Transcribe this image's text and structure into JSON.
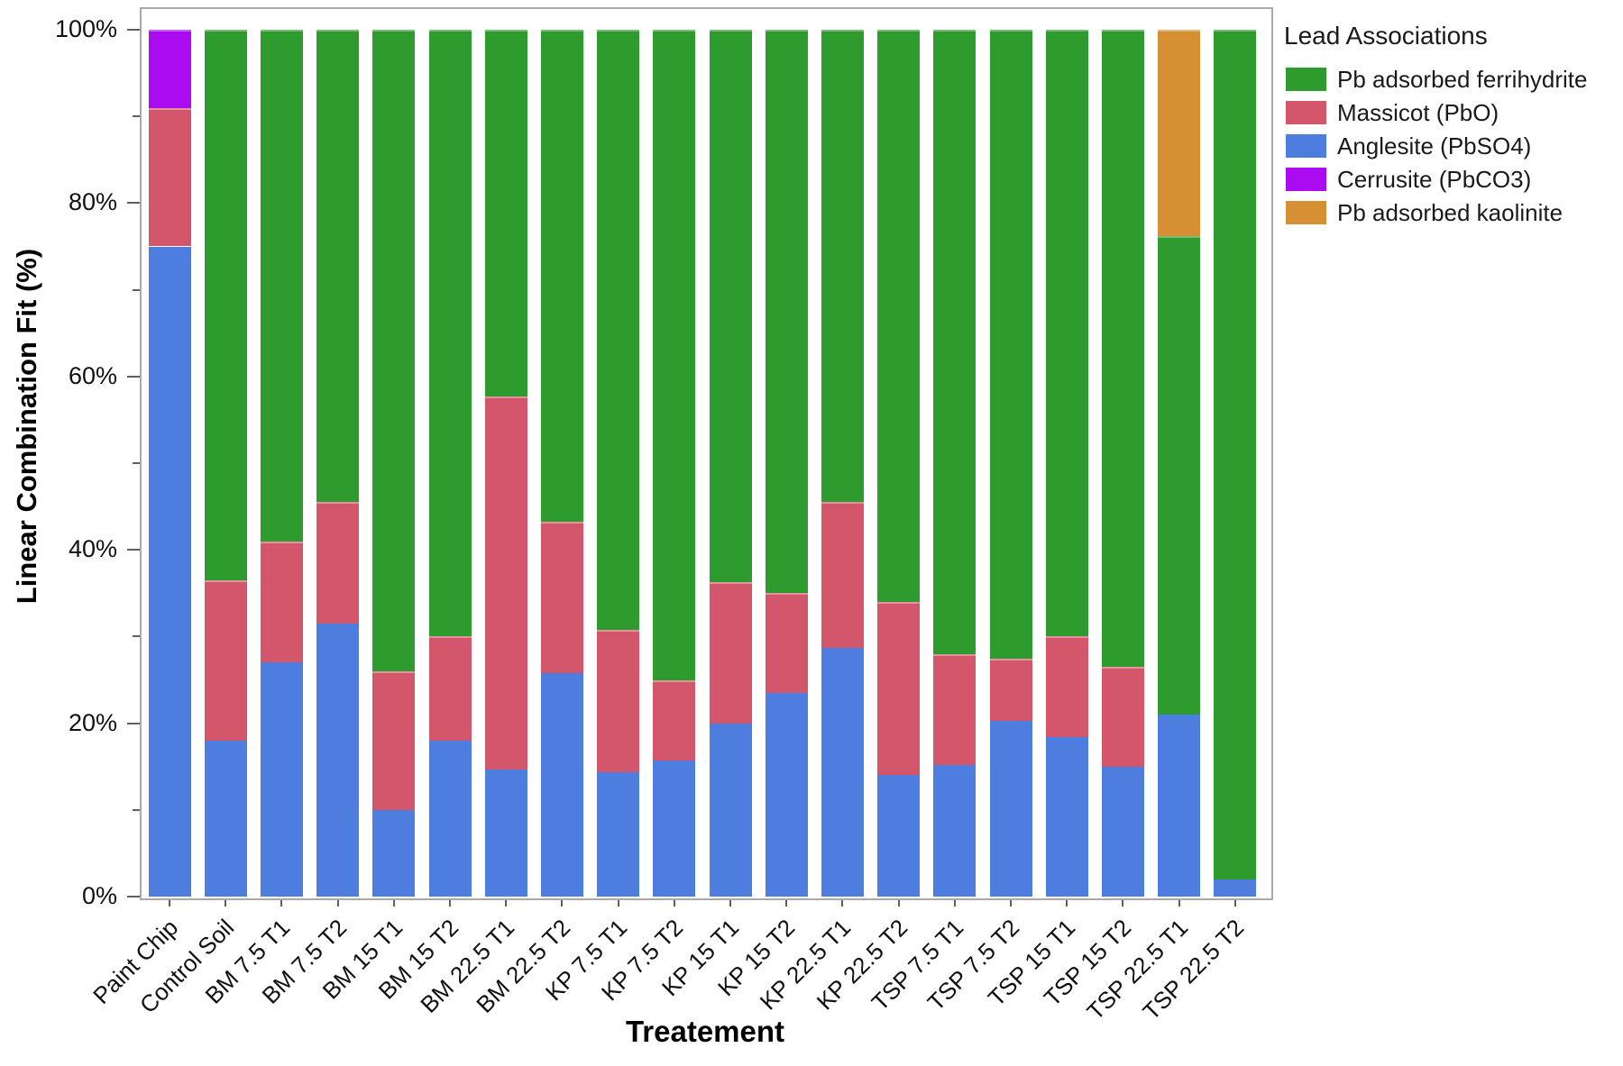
{
  "chart_data": {
    "type": "bar",
    "stacked": true,
    "x_title": "Treatement",
    "y_title": "Linear Combination Fit (%)",
    "ylim": [
      0,
      100
    ],
    "y_major_ticks": [
      0,
      20,
      40,
      60,
      80,
      100
    ],
    "y_minor_ticks": [
      10,
      30,
      50,
      70,
      90
    ],
    "y_major_labels": [
      "0%",
      "20%",
      "40%",
      "60%",
      "80%",
      "100%"
    ],
    "grid": "off",
    "legend_position": "top-right",
    "categories": [
      "Paint Chip",
      "Control Soil",
      "BM 7.5 T1",
      "BM 7.5 T2",
      "BM 15 T1",
      "BM 15 T2",
      "BM 22.5 T1",
      "BM 22.5 T2",
      "KP 7.5 T1",
      "KP 7.5 T2",
      "KP 15 T1",
      "KP 15 T2",
      "KP 22.5 T1",
      "KP 22.5 T2",
      "TSP 7.5 T1",
      "TSP 7.5 T2",
      "TSP 15 T1",
      "TSP 15 T2",
      "TSP 22.5 T1",
      "TSP 22.5 T2"
    ],
    "stack_order": "series listed bottom to top",
    "series": [
      {
        "name": "Anglesite (PbSO4)",
        "color": "#4E7DE0",
        "values": [
          75,
          18,
          27,
          31.5,
          10,
          18,
          14.7,
          25.8,
          14.3,
          15.7,
          20,
          23.5,
          28.7,
          14,
          15.2,
          20.3,
          18.4,
          15,
          21,
          2
        ]
      },
      {
        "name": "Massicot (PbO)",
        "color": "#D4566A",
        "values": [
          16,
          18.5,
          14,
          14,
          16,
          12,
          43,
          17.4,
          16.5,
          9.3,
          16.3,
          11.5,
          16.8,
          20,
          12.8,
          7.1,
          11.6,
          11.5,
          0,
          0
        ]
      },
      {
        "name": "Pb adsorbed ferrihydrite",
        "color": "#2D9B2D",
        "values": [
          0,
          63.5,
          59,
          54.5,
          74,
          70,
          42.3,
          56.8,
          69.2,
          75,
          63.7,
          65,
          54.5,
          66,
          72,
          72.6,
          70,
          73.5,
          55.2,
          98
        ]
      },
      {
        "name": "Cerrusite (PbCO3)",
        "color": "#AB0BF0",
        "values": [
          9,
          0,
          0,
          0,
          0,
          0,
          0,
          0,
          0,
          0,
          0,
          0,
          0,
          0,
          0,
          0,
          0,
          0,
          0,
          0
        ]
      },
      {
        "name": "Pb adsorbed kaolinite",
        "color": "#D68F33",
        "values": [
          0,
          0,
          0,
          0,
          0,
          0,
          0,
          0,
          0,
          0,
          0,
          0,
          0,
          0,
          0,
          0,
          0,
          0,
          23.8,
          0
        ]
      }
    ]
  },
  "legend": {
    "title": "Lead Associations",
    "entries": [
      {
        "label": "Pb adsorbed ferrihydrite",
        "color": "#2D9B2D"
      },
      {
        "label": "Massicot (PbO)",
        "color": "#D4566A"
      },
      {
        "label": "Anglesite (PbSO4)",
        "color": "#4E7DE0"
      },
      {
        "label": "Cerrusite (PbCO3)",
        "color": "#AB0BF0"
      },
      {
        "label": "Pb adsorbed kaolinite",
        "color": "#D68F33"
      }
    ]
  }
}
